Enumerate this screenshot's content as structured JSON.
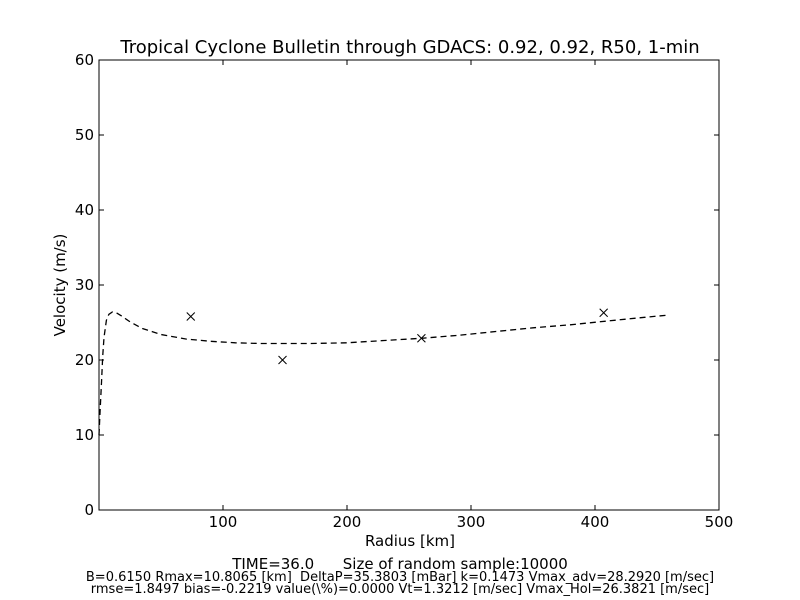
{
  "chart_data": {
    "type": "line",
    "title": "Tropical Cyclone Bulletin through GDACS: 0.92, 0.92, R50, 1-min",
    "xlabel": "Radius [km]",
    "ylabel": "Velocity (m/s)",
    "xlim": [
      0,
      500
    ],
    "ylim": [
      0,
      60
    ],
    "xticks": [
      100,
      200,
      300,
      400,
      500
    ],
    "yticks": [
      0,
      10,
      20,
      30,
      40,
      50,
      60
    ],
    "grid": false,
    "series": [
      {
        "style": "dashed-line",
        "color": "#000000",
        "x": [
          0,
          1,
          2,
          3,
          4,
          6,
          8,
          10.8,
          14,
          18,
          25,
          35,
          50,
          70,
          90,
          110,
          130,
          150,
          170,
          200,
          230,
          260,
          290,
          320,
          350,
          380,
          410,
          440,
          460
        ],
        "y": [
          10,
          13.5,
          17,
          20.5,
          23,
          25.3,
          26.1,
          26.4,
          26.3,
          25.9,
          25.1,
          24.2,
          23.4,
          22.8,
          22.5,
          22.3,
          22.2,
          22.2,
          22.2,
          22.3,
          22.6,
          22.9,
          23.3,
          23.8,
          24.3,
          24.7,
          25.2,
          25.7,
          26.0
        ]
      },
      {
        "style": "x-marker",
        "color": "#000000",
        "x": [
          74,
          148,
          260,
          407
        ],
        "y": [
          25.8,
          20.0,
          22.9,
          26.3
        ]
      }
    ]
  },
  "footer": {
    "time": "TIME=36.0      Size of random sample:10000",
    "params": "B=0.6150 Rmax=10.8065 [km]  DeltaP=35.3803 [mBar] k=0.1473 Vmax_adv=28.2920 [m/sec]",
    "stats": "rmse=1.8497 bias=-0.2219 value(\\%)=0.0000 Vt=1.3212 [m/sec] Vmax_Hol=26.3821 [m/sec]"
  }
}
